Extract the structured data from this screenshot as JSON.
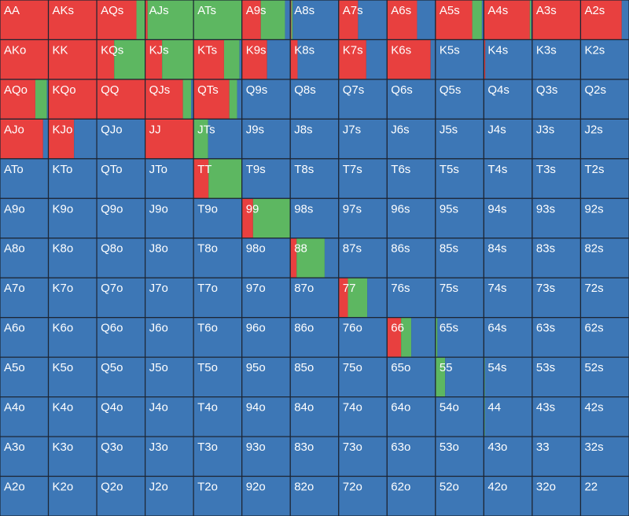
{
  "grid": {
    "colors": [
      "#e8403f",
      "#5db761",
      "#3d77b6"
    ],
    "labels": [
      [
        "AA",
        "AKs",
        "AQs",
        "AJs",
        "ATs",
        "A9s",
        "A8s",
        "A7s",
        "A6s",
        "A5s",
        "A4s",
        "A3s",
        "A2s"
      ],
      [
        "AKo",
        "KK",
        "KQs",
        "KJs",
        "KTs",
        "K9s",
        "K8s",
        "K7s",
        "K6s",
        "K5s",
        "K4s",
        "K3s",
        "K2s"
      ],
      [
        "AQo",
        "KQo",
        "QQ",
        "QJs",
        "QTs",
        "Q9s",
        "Q8s",
        "Q7s",
        "Q6s",
        "Q5s",
        "Q4s",
        "Q3s",
        "Q2s"
      ],
      [
        "AJo",
        "KJo",
        "QJo",
        "JJ",
        "JTs",
        "J9s",
        "J8s",
        "J7s",
        "J6s",
        "J5s",
        "J4s",
        "J3s",
        "J2s"
      ],
      [
        "ATo",
        "KTo",
        "QTo",
        "JTo",
        "TT",
        "T9s",
        "T8s",
        "T7s",
        "T6s",
        "T5s",
        "T4s",
        "T3s",
        "T2s"
      ],
      [
        "A9o",
        "K9o",
        "Q9o",
        "J9o",
        "T9o",
        "99",
        "98s",
        "97s",
        "96s",
        "95s",
        "94s",
        "93s",
        "92s"
      ],
      [
        "A8o",
        "K8o",
        "Q8o",
        "J8o",
        "T8o",
        "98o",
        "88",
        "87s",
        "86s",
        "85s",
        "84s",
        "83s",
        "82s"
      ],
      [
        "A7o",
        "K7o",
        "Q7o",
        "J7o",
        "T7o",
        "97o",
        "87o",
        "77",
        "76s",
        "75s",
        "74s",
        "73s",
        "72s"
      ],
      [
        "A6o",
        "K6o",
        "Q6o",
        "J6o",
        "T6o",
        "96o",
        "86o",
        "76o",
        "66",
        "65s",
        "64s",
        "63s",
        "62s"
      ],
      [
        "A5o",
        "K5o",
        "Q5o",
        "J5o",
        "T5o",
        "95o",
        "85o",
        "75o",
        "65o",
        "55",
        "54s",
        "53s",
        "52s"
      ],
      [
        "A4o",
        "K4o",
        "Q4o",
        "J4o",
        "T4o",
        "94o",
        "84o",
        "74o",
        "64o",
        "54o",
        "44",
        "43s",
        "42s"
      ],
      [
        "A3o",
        "K3o",
        "Q3o",
        "J3o",
        "T3o",
        "93o",
        "83o",
        "73o",
        "63o",
        "53o",
        "43o",
        "33",
        "32s"
      ],
      [
        "A2o",
        "K2o",
        "Q2o",
        "J2o",
        "T2o",
        "92o",
        "82o",
        "72o",
        "62o",
        "52o",
        "42o",
        "32o",
        "22"
      ]
    ],
    "mix": [
      [
        [
          100,
          0,
          0
        ],
        [
          100,
          0,
          0
        ],
        [
          82,
          18,
          0
        ],
        [
          5,
          95,
          0
        ],
        [
          0,
          100,
          0
        ],
        [
          39,
          50,
          11
        ],
        [
          2,
          3,
          95
        ],
        [
          40,
          0,
          60
        ],
        [
          62,
          0,
          38
        ],
        [
          76,
          20,
          4
        ],
        [
          95,
          3,
          2
        ],
        [
          100,
          0,
          0
        ],
        [
          85,
          0,
          15
        ]
      ],
      [
        [
          100,
          0,
          0
        ],
        [
          100,
          0,
          0
        ],
        [
          36,
          64,
          0
        ],
        [
          35,
          65,
          0
        ],
        [
          63,
          32,
          5
        ],
        [
          52,
          0,
          48
        ],
        [
          15,
          0,
          85
        ],
        [
          57,
          0,
          43
        ],
        [
          90,
          0,
          10
        ],
        [
          0,
          0,
          100
        ],
        [
          3,
          0,
          97
        ],
        [
          0,
          0,
          100
        ],
        [
          0,
          0,
          100
        ]
      ],
      [
        [
          73,
          24,
          3
        ],
        [
          100,
          0,
          0
        ],
        [
          100,
          0,
          0
        ],
        [
          78,
          17,
          5
        ],
        [
          74,
          16,
          10
        ],
        [
          0,
          0,
          100
        ],
        [
          0,
          0,
          100
        ],
        [
          0,
          0,
          100
        ],
        [
          0,
          0,
          100
        ],
        [
          0,
          0,
          100
        ],
        [
          0,
          0,
          100
        ],
        [
          0,
          0,
          100
        ],
        [
          0,
          0,
          100
        ]
      ],
      [
        [
          89,
          0,
          11
        ],
        [
          53,
          0,
          47
        ],
        [
          0,
          0,
          100
        ],
        [
          100,
          0,
          0
        ],
        [
          0,
          30,
          70
        ],
        [
          0,
          0,
          100
        ],
        [
          0,
          0,
          100
        ],
        [
          0,
          0,
          100
        ],
        [
          0,
          0,
          100
        ],
        [
          0,
          0,
          100
        ],
        [
          0,
          0,
          100
        ],
        [
          0,
          0,
          100
        ],
        [
          0,
          0,
          100
        ]
      ],
      [
        [
          0,
          0,
          100
        ],
        [
          0,
          0,
          100
        ],
        [
          0,
          0,
          100
        ],
        [
          0,
          0,
          100
        ],
        [
          31,
          69,
          0
        ],
        [
          0,
          0,
          100
        ],
        [
          0,
          0,
          100
        ],
        [
          0,
          0,
          100
        ],
        [
          0,
          0,
          100
        ],
        [
          0,
          0,
          100
        ],
        [
          0,
          0,
          100
        ],
        [
          0,
          0,
          100
        ],
        [
          0,
          0,
          100
        ]
      ],
      [
        [
          0,
          0,
          100
        ],
        [
          0,
          0,
          100
        ],
        [
          0,
          0,
          100
        ],
        [
          0,
          0,
          100
        ],
        [
          0,
          0,
          100
        ],
        [
          23,
          77,
          0
        ],
        [
          0,
          0,
          100
        ],
        [
          0,
          0,
          100
        ],
        [
          0,
          0,
          100
        ],
        [
          0,
          0,
          100
        ],
        [
          0,
          0,
          100
        ],
        [
          0,
          0,
          100
        ],
        [
          0,
          0,
          100
        ]
      ],
      [
        [
          0,
          0,
          100
        ],
        [
          0,
          0,
          100
        ],
        [
          0,
          0,
          100
        ],
        [
          0,
          0,
          100
        ],
        [
          0,
          0,
          100
        ],
        [
          0,
          0,
          100
        ],
        [
          13,
          58,
          29
        ],
        [
          0,
          0,
          100
        ],
        [
          0,
          0,
          100
        ],
        [
          0,
          0,
          100
        ],
        [
          0,
          0,
          100
        ],
        [
          0,
          0,
          100
        ],
        [
          0,
          0,
          100
        ]
      ],
      [
        [
          0,
          0,
          100
        ],
        [
          0,
          0,
          100
        ],
        [
          0,
          0,
          100
        ],
        [
          0,
          0,
          100
        ],
        [
          0,
          0,
          100
        ],
        [
          0,
          0,
          100
        ],
        [
          0,
          0,
          100
        ],
        [
          19,
          40,
          41
        ],
        [
          0,
          0,
          100
        ],
        [
          0,
          0,
          100
        ],
        [
          0,
          0,
          100
        ],
        [
          0,
          0,
          100
        ],
        [
          0,
          0,
          100
        ]
      ],
      [
        [
          0,
          0,
          100
        ],
        [
          0,
          0,
          100
        ],
        [
          0,
          0,
          100
        ],
        [
          0,
          0,
          100
        ],
        [
          0,
          0,
          100
        ],
        [
          0,
          0,
          100
        ],
        [
          0,
          0,
          100
        ],
        [
          0,
          0,
          100
        ],
        [
          29,
          21,
          50
        ],
        [
          0,
          4,
          96
        ],
        [
          0,
          0,
          100
        ],
        [
          0,
          0,
          100
        ],
        [
          0,
          0,
          100
        ]
      ],
      [
        [
          0,
          0,
          100
        ],
        [
          0,
          0,
          100
        ],
        [
          0,
          0,
          100
        ],
        [
          0,
          0,
          100
        ],
        [
          0,
          0,
          100
        ],
        [
          0,
          0,
          100
        ],
        [
          0,
          0,
          100
        ],
        [
          0,
          0,
          100
        ],
        [
          0,
          0,
          100
        ],
        [
          0,
          20,
          80
        ],
        [
          0,
          2,
          98
        ],
        [
          0,
          0,
          100
        ],
        [
          0,
          0,
          100
        ]
      ],
      [
        [
          0,
          0,
          100
        ],
        [
          0,
          0,
          100
        ],
        [
          0,
          0,
          100
        ],
        [
          0,
          0,
          100
        ],
        [
          0,
          0,
          100
        ],
        [
          0,
          0,
          100
        ],
        [
          0,
          0,
          100
        ],
        [
          0,
          0,
          100
        ],
        [
          0,
          0,
          100
        ],
        [
          0,
          0,
          100
        ],
        [
          0,
          2,
          98
        ],
        [
          0,
          0,
          100
        ],
        [
          0,
          0,
          100
        ]
      ],
      [
        [
          0,
          0,
          100
        ],
        [
          0,
          0,
          100
        ],
        [
          0,
          0,
          100
        ],
        [
          0,
          0,
          100
        ],
        [
          0,
          0,
          100
        ],
        [
          0,
          0,
          100
        ],
        [
          0,
          0,
          100
        ],
        [
          0,
          0,
          100
        ],
        [
          0,
          0,
          100
        ],
        [
          0,
          0,
          100
        ],
        [
          0,
          0,
          100
        ],
        [
          0,
          0,
          100
        ],
        [
          0,
          0,
          100
        ]
      ],
      [
        [
          0,
          0,
          100
        ],
        [
          0,
          0,
          100
        ],
        [
          0,
          0,
          100
        ],
        [
          0,
          0,
          100
        ],
        [
          0,
          0,
          100
        ],
        [
          0,
          0,
          100
        ],
        [
          0,
          0,
          100
        ],
        [
          0,
          0,
          100
        ],
        [
          0,
          0,
          100
        ],
        [
          0,
          0,
          100
        ],
        [
          0,
          0,
          100
        ],
        [
          0,
          0,
          100
        ],
        [
          0,
          0,
          100
        ]
      ]
    ]
  }
}
